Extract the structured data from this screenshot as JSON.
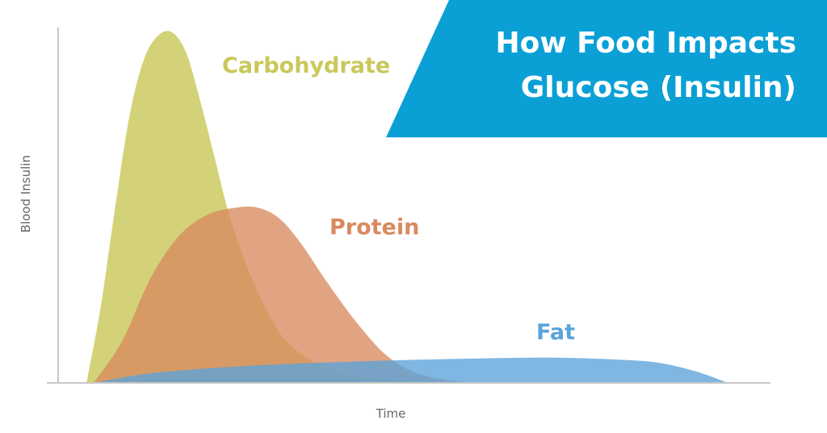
{
  "title": {
    "line1": "How Food Impacts",
    "line2": "Glucose (Insulin)",
    "bg_color": "#0aa0d6"
  },
  "chart_data": {
    "type": "area",
    "title": "How Food Impacts Glucose (Insulin)",
    "xlabel": "Time",
    "ylabel": "Blood Insulin",
    "x_ticks": "none",
    "y_ticks": "none",
    "xlim": [
      0,
      100
    ],
    "ylim": [
      0,
      100
    ],
    "grid": false,
    "legend": "direct labels on curves",
    "series": [
      {
        "name": "Carbohydrate",
        "color": "#c9c85a",
        "x": [
          4,
          6,
          8,
          10,
          12,
          14,
          16,
          18,
          20,
          22,
          24,
          26,
          28,
          30,
          32,
          35,
          38,
          42,
          46,
          52
        ],
        "values": [
          0,
          22,
          50,
          76,
          92,
          99,
          100,
          94,
          80,
          64,
          48,
          36,
          26,
          18,
          12,
          7,
          4,
          2,
          1,
          0
        ]
      },
      {
        "name": "Protein",
        "color": "#d88a5f",
        "x": [
          5,
          9,
          13,
          17,
          21,
          25,
          28,
          31,
          34,
          38,
          42,
          46,
          50,
          54,
          58
        ],
        "values": [
          0,
          12,
          30,
          42,
          48,
          50,
          50,
          47,
          40,
          28,
          17,
          8,
          3,
          1,
          0
        ]
      },
      {
        "name": "Fat",
        "color": "#5ba3da",
        "x": [
          5,
          12,
          20,
          30,
          40,
          50,
          60,
          70,
          80,
          85,
          90,
          94
        ],
        "values": [
          0,
          2.5,
          4,
          5.2,
          6,
          6.6,
          7,
          7.2,
          6.5,
          5.5,
          3,
          0
        ]
      }
    ]
  }
}
